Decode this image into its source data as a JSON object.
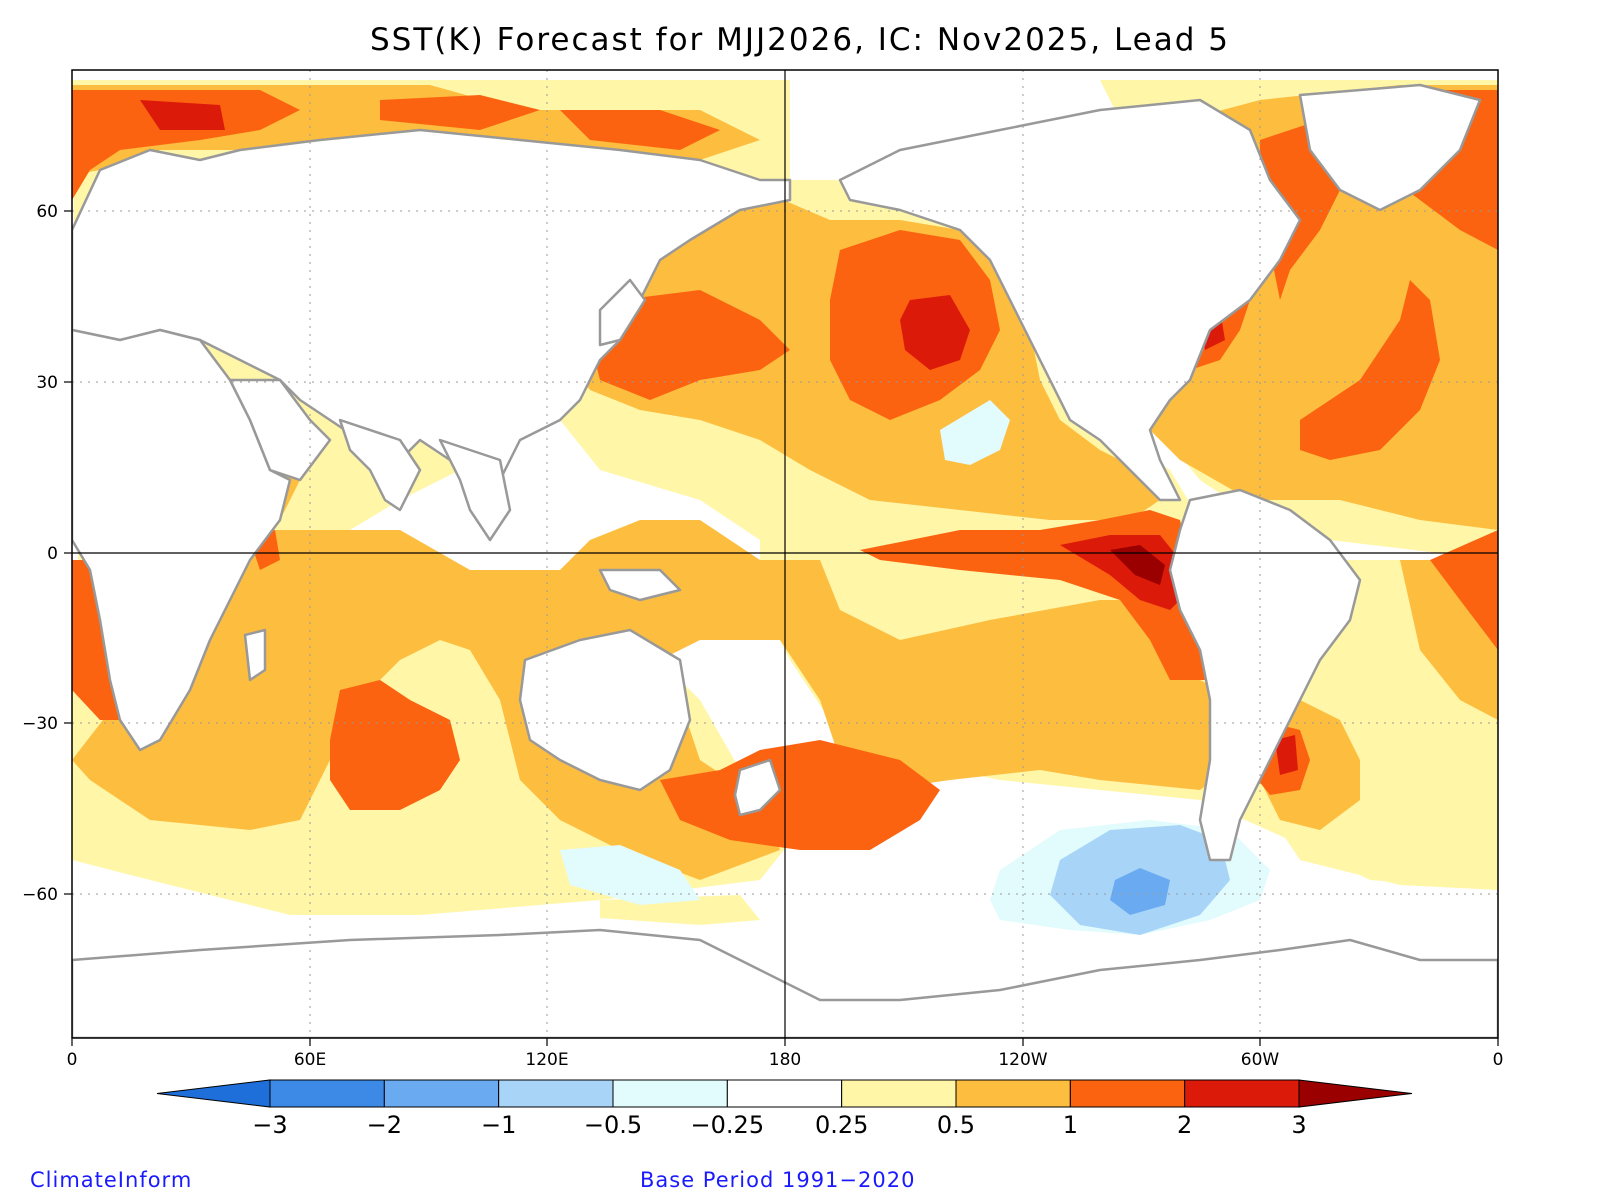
{
  "title": "SST(K) Forecast for MJJ2026, IC: Nov2025, Lead 5",
  "variable": "SST anomaly",
  "units": "K",
  "lon_ticks": [
    "0",
    "60E",
    "120E",
    "180",
    "120W",
    "60W",
    "0"
  ],
  "lat_ticks": [
    "60",
    "30",
    "0",
    "−30",
    "−60"
  ],
  "colorbar": {
    "labels": [
      "−3",
      "−2",
      "−1",
      "−0.5",
      "−0.25",
      "0.25",
      "0.5",
      "1",
      "2",
      "3"
    ],
    "colors": [
      "#1e6fd9",
      "#3d8ae6",
      "#6aaaf0",
      "#a8d4f8",
      "#e2fbfd",
      "#ffffff",
      "#fff6a8",
      "#fdbd3e",
      "#fb6310",
      "#dc1a0a",
      "#9a0000"
    ]
  },
  "colors": {
    "land_outline": "#999999",
    "ocean_neutral": "#ffffff",
    "frame": "#000000"
  },
  "features": [
    {
      "name": "equatorial-east-pacific-warm-core",
      "anomaly_K": 3
    },
    {
      "name": "north-pacific-warm-blob",
      "anomaly_K": 2
    },
    {
      "name": "south-pacific-cool-patch",
      "anomaly_K": -1
    },
    {
      "name": "subtropical-northeast-pacific-cool-patch",
      "anomaly_K": -0.25
    }
  ],
  "credit": "ClimateInform",
  "base_period": "Base Period 1991−2020"
}
